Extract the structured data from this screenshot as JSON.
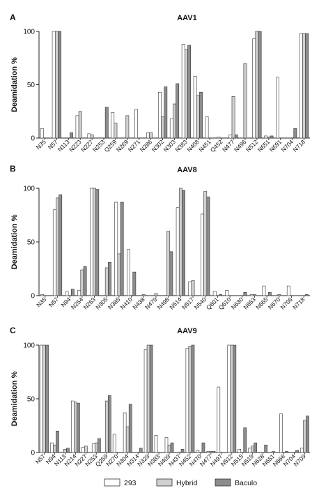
{
  "legend": {
    "items": [
      {
        "label": "293",
        "color": "#ffffff"
      },
      {
        "label": "Hybrid",
        "color": "#d0d0d0"
      },
      {
        "label": "Baculo",
        "color": "#8c8c8c"
      }
    ]
  },
  "chart_data": [
    {
      "type": "bar",
      "panel": "A",
      "title": "AAV1",
      "ylabel": "Deamidation %",
      "ylim": [
        0,
        100
      ],
      "yticks": [
        0,
        50,
        100
      ],
      "categories": [
        "N35",
        "N57",
        "N113",
        "N223",
        "N227",
        "N253",
        "Q259",
        "N269",
        "N271",
        "N286",
        "N302",
        "N303",
        "N383",
        "N408",
        "N451",
        "Q452",
        "N477",
        "N496",
        "N512",
        "N651",
        "N691",
        "N704",
        "N718"
      ],
      "series": [
        {
          "name": "293",
          "values": [
            9,
            100,
            0,
            21,
            4,
            0,
            24,
            0,
            27,
            5,
            43,
            18,
            88,
            58,
            20,
            1,
            3,
            0,
            93,
            2,
            57,
            0,
            98
          ]
        },
        {
          "name": "Hybrid",
          "values": [
            0,
            100,
            0,
            25,
            3,
            0,
            14,
            21,
            0,
            5,
            20,
            32,
            83,
            40,
            0,
            0,
            39,
            70,
            100,
            1,
            0,
            0,
            98
          ]
        },
        {
          "name": "Baculo",
          "values": [
            0,
            100,
            5,
            0,
            0,
            29,
            0,
            0,
            0,
            0,
            48,
            51,
            87,
            43,
            0,
            0,
            3,
            0,
            100,
            2,
            0,
            9,
            98
          ]
        }
      ]
    },
    {
      "type": "bar",
      "panel": "B",
      "title": "AAV8",
      "ylabel": "Deamidation %",
      "ylim": [
        0,
        100
      ],
      "yticks": [
        0,
        50,
        100
      ],
      "categories": [
        "N35",
        "N57",
        "N94",
        "N254",
        "N263",
        "N305",
        "N385",
        "N410",
        "N438",
        "N479",
        "N498",
        "N514",
        "N517",
        "N540",
        "Q601",
        "Q610",
        "N630",
        "N653",
        "N665",
        "N670",
        "N706",
        "N718"
      ],
      "series": [
        {
          "name": "293",
          "values": [
            1,
            80,
            4,
            5,
            100,
            0,
            87,
            43,
            0,
            0,
            0,
            82,
            13,
            76,
            4,
            5,
            0,
            1,
            9,
            0,
            9,
            0
          ]
        },
        {
          "name": "Hybrid",
          "values": [
            0,
            91,
            0,
            24,
            100,
            26,
            39,
            0,
            1,
            2,
            60,
            100,
            14,
            97,
            0,
            0,
            0,
            1,
            0,
            1,
            0,
            0
          ]
        },
        {
          "name": "Baculo",
          "values": [
            0,
            94,
            6,
            27,
            99,
            31,
            87,
            22,
            0,
            0,
            41,
            98,
            0,
            92,
            1,
            0,
            3,
            0,
            3,
            0,
            0,
            1
          ]
        }
      ]
    },
    {
      "type": "bar",
      "panel": "C",
      "title": "AAV9",
      "ylabel": "Deamidation %",
      "ylim": [
        0,
        100
      ],
      "yticks": [
        0,
        50,
        100
      ],
      "categories": [
        "N57",
        "N94",
        "N113",
        "N214",
        "N227",
        "N253",
        "Q259",
        "N270",
        "N304",
        "N314",
        "N329",
        "N383",
        "N409",
        "N437",
        "N452",
        "N470",
        "N477",
        "N497",
        "N512",
        "N515",
        "N519",
        "N628",
        "N651",
        "N666",
        "N704",
        "N709"
      ],
      "series": [
        {
          "name": "293",
          "values": [
            100,
            9,
            0,
            48,
            5,
            8,
            0,
            17,
            37,
            0,
            96,
            16,
            14,
            0,
            97,
            2,
            1,
            61,
            100,
            3,
            4,
            0,
            0,
            36,
            0,
            4
          ]
        },
        {
          "name": "Hybrid",
          "values": [
            100,
            7,
            3,
            47,
            6,
            9,
            48,
            0,
            24,
            0,
            100,
            0,
            7,
            0,
            99,
            0,
            1,
            0,
            100,
            0,
            6,
            0,
            1,
            0,
            0,
            30
          ]
        },
        {
          "name": "Baculo",
          "values": [
            100,
            20,
            4,
            46,
            0,
            13,
            53,
            0,
            45,
            4,
            100,
            0,
            9,
            3,
            100,
            9,
            1,
            0,
            100,
            23,
            9,
            7,
            0,
            1,
            2,
            34
          ]
        }
      ]
    }
  ]
}
